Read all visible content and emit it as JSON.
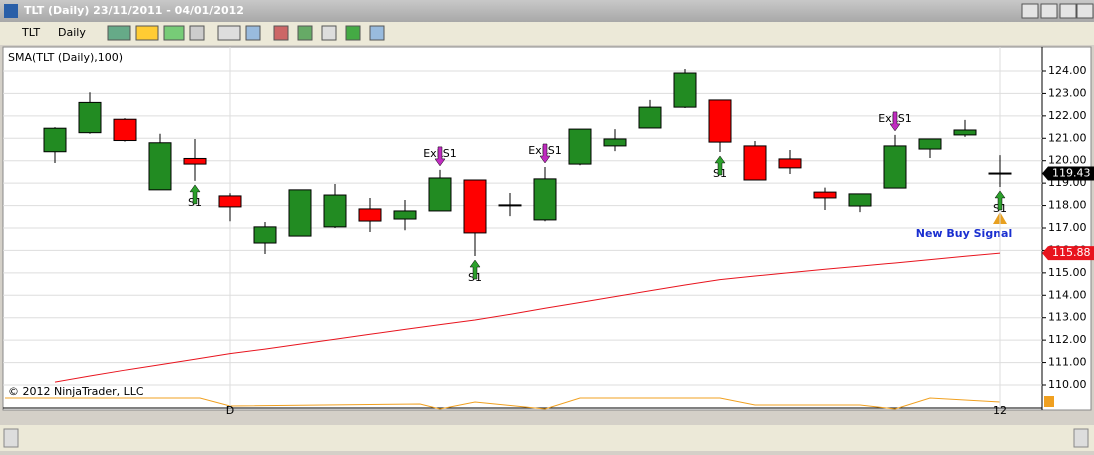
{
  "window": {
    "title": "TLT (Daily)  23/11/2011 - 04/01/2012"
  },
  "toolbar": {
    "instrument": "TLT",
    "period": "Daily"
  },
  "chart_data": {
    "type": "candlestick",
    "indicator_label": "SMA(TLT (Daily),100)",
    "copyright": "© 2012 NinjaTrader, LLC",
    "annotation": "New Buy Signal",
    "categories": [
      null,
      null,
      null,
      null,
      null,
      "D",
      null,
      null,
      null,
      null,
      null,
      null,
      null,
      null,
      null,
      null,
      null,
      null,
      null,
      null,
      null,
      null,
      null,
      null,
      null,
      null,
      null,
      "12"
    ],
    "open": [
      120.4,
      121.25,
      121.85,
      118.7,
      120.1,
      118.43,
      116.33,
      116.64,
      117.05,
      117.85,
      117.4,
      117.76,
      119.14,
      118.03,
      117.36,
      119.85,
      120.66,
      121.46,
      122.39,
      122.71,
      120.66,
      120.08,
      118.6,
      117.98,
      118.78,
      120.52,
      121.15,
      119.45
    ],
    "high": [
      121.5,
      123.05,
      121.9,
      121.2,
      120.97,
      118.55,
      117.27,
      118.7,
      118.96,
      118.34,
      118.25,
      119.59,
      119.14,
      118.56,
      119.72,
      121.41,
      121.41,
      122.71,
      124.09,
      122.71,
      120.88,
      120.48,
      118.8,
      118.52,
      121.15,
      120.97,
      121.82,
      120.25
    ],
    "low": [
      119.9,
      121.2,
      120.85,
      118.7,
      119.1,
      117.3,
      115.84,
      116.64,
      117.0,
      116.82,
      116.9,
      117.76,
      115.75,
      117.53,
      117.3,
      119.8,
      120.43,
      121.46,
      122.35,
      120.39,
      119.14,
      119.41,
      117.8,
      117.71,
      118.78,
      120.12,
      121.06,
      118.83
    ],
    "close": [
      121.45,
      122.6,
      120.9,
      120.8,
      119.85,
      117.94,
      117.05,
      118.7,
      118.47,
      117.31,
      117.76,
      119.23,
      116.78,
      118.03,
      119.19,
      121.41,
      120.97,
      122.39,
      123.91,
      120.83,
      119.14,
      119.68,
      118.34,
      118.52,
      120.66,
      120.97,
      121.37,
      119.43
    ],
    "up_color": "#228b22",
    "down_color": "#ff0000",
    "sma": {
      "name": "SMA",
      "color": "#e8141e",
      "values": [
        110.13,
        110.4,
        110.66,
        110.9,
        111.15,
        111.4,
        111.6,
        111.82,
        112.04,
        112.26,
        112.48,
        112.69,
        112.9,
        113.15,
        113.42,
        113.68,
        113.94,
        114.2,
        114.46,
        114.7,
        114.86,
        115.01,
        115.16,
        115.3,
        115.44,
        115.59,
        115.74,
        115.88
      ]
    },
    "buy_signals": [
      null,
      null,
      null,
      null,
      "S1",
      null,
      null,
      null,
      null,
      null,
      null,
      null,
      "S1",
      null,
      null,
      null,
      null,
      null,
      null,
      "S1",
      null,
      null,
      null,
      null,
      null,
      null,
      null,
      "S1"
    ],
    "exit_signals": [
      null,
      null,
      null,
      null,
      null,
      null,
      null,
      null,
      null,
      null,
      null,
      "ExLS1",
      null,
      null,
      "ExLS1",
      null,
      null,
      null,
      null,
      null,
      null,
      null,
      null,
      null,
      "ExLS1",
      null,
      null,
      null
    ],
    "price_tags": [
      {
        "value": 119.43,
        "label": "119.43",
        "color": "#000000"
      },
      {
        "value": 115.88,
        "label": "115.88",
        "color": "#e8141e"
      }
    ],
    "ylim": [
      109.42,
      125.07
    ],
    "yticks": [
      {
        "value": 110,
        "label": "110.00"
      },
      {
        "value": 111,
        "label": "111.00"
      },
      {
        "value": 112,
        "label": "112.00"
      },
      {
        "value": 113,
        "label": "113.00"
      },
      {
        "value": 114,
        "label": "114.00"
      },
      {
        "value": 115,
        "label": "115.00"
      },
      {
        "value": 116,
        "label": "116.00"
      },
      {
        "value": 117,
        "label": "117.00"
      },
      {
        "value": 118,
        "label": "118.00"
      },
      {
        "value": 119,
        "label": "119.00"
      },
      {
        "value": 120,
        "label": "120.00"
      },
      {
        "value": 121,
        "label": "121.00"
      },
      {
        "value": 122,
        "label": "122.00"
      },
      {
        "value": 123,
        "label": "123.00"
      },
      {
        "value": 124,
        "label": "124.00"
      }
    ],
    "grid": true
  }
}
